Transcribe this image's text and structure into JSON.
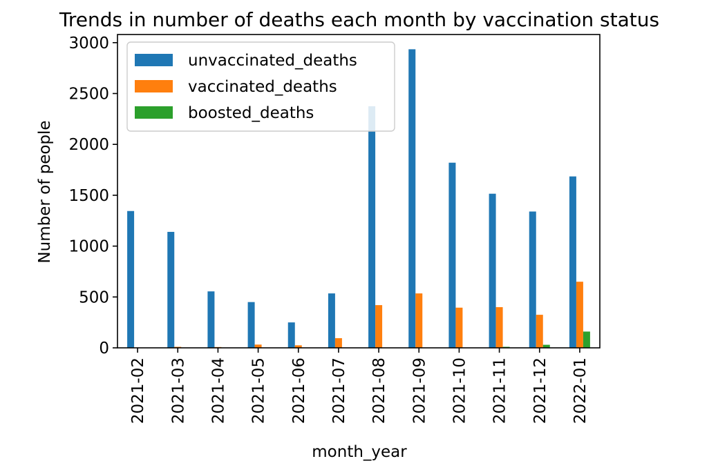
{
  "chart_data": {
    "type": "bar",
    "title": "Trends in number of deaths each month by vaccination status",
    "xlabel": "month_year",
    "ylabel": "Number of people",
    "ylim": [
      0,
      3080
    ],
    "yticks": [
      0,
      500,
      1000,
      1500,
      2000,
      2500,
      3000
    ],
    "grid": false,
    "legend_position": "top-left",
    "categories": [
      "2021-02",
      "2021-03",
      "2021-04",
      "2021-05",
      "2021-06",
      "2021-07",
      "2021-08",
      "2021-09",
      "2021-10",
      "2021-11",
      "2021-12",
      "2022-01"
    ],
    "series": [
      {
        "name": "unvaccinated_deaths",
        "color": "#1f77b4",
        "values": [
          1345,
          1140,
          555,
          450,
          250,
          535,
          2375,
          2935,
          1820,
          1515,
          1340,
          1685
        ]
      },
      {
        "name": "vaccinated_deaths",
        "color": "#ff7f0e",
        "values": [
          0,
          10,
          8,
          32,
          25,
          95,
          420,
          535,
          395,
          400,
          325,
          650
        ]
      },
      {
        "name": "boosted_deaths",
        "color": "#2ca02c",
        "values": [
          0,
          0,
          0,
          0,
          0,
          0,
          0,
          0,
          0,
          10,
          30,
          160
        ]
      }
    ]
  }
}
